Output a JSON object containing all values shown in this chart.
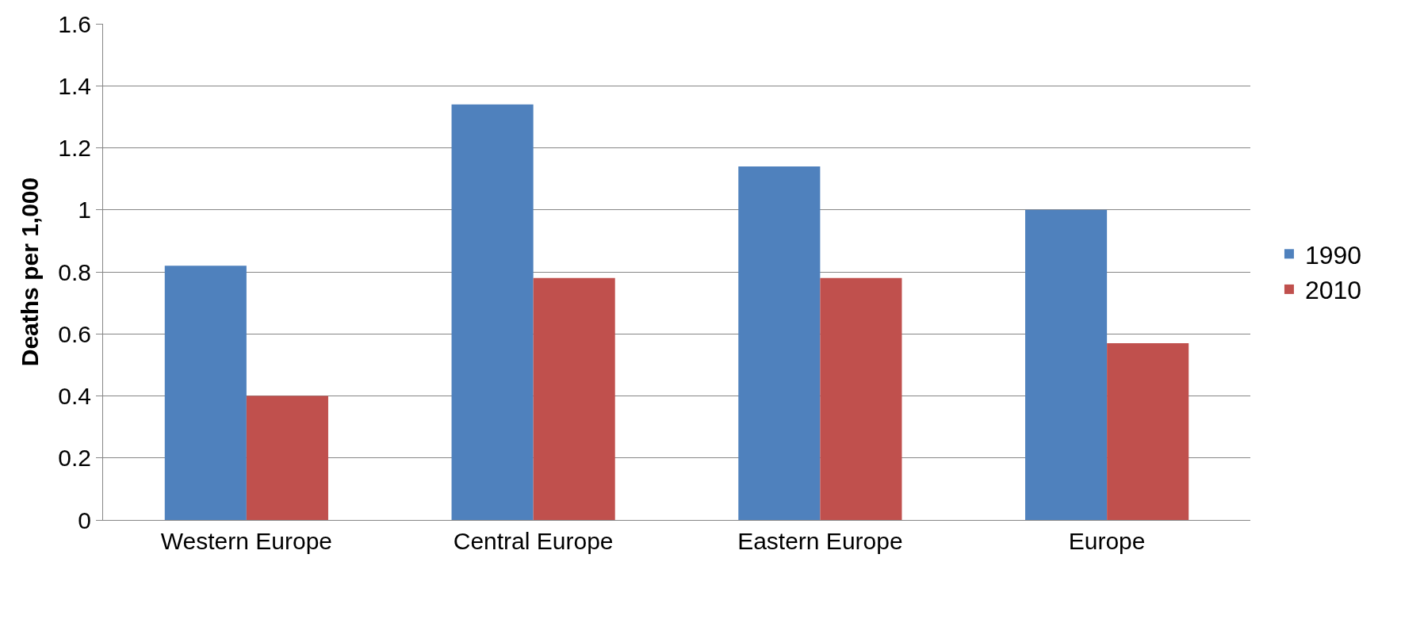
{
  "chart_data": {
    "type": "bar",
    "ylabel": "Deaths per 1,000",
    "categories": [
      "Western Europe",
      "Central Europe",
      "Eastern Europe",
      "Europe"
    ],
    "series": [
      {
        "name": "1990",
        "color": "#4f81bd",
        "values": [
          0.82,
          1.34,
          1.14,
          1.0
        ]
      },
      {
        "name": "2010",
        "color": "#c0504d",
        "values": [
          0.4,
          0.78,
          0.78,
          0.57
        ]
      }
    ],
    "ylim": [
      0,
      1.6
    ],
    "yticks": [
      0,
      0.2,
      0.4,
      0.6,
      0.8,
      1,
      1.2,
      1.4,
      1.6
    ],
    "grid": "y",
    "legend": "right"
  }
}
